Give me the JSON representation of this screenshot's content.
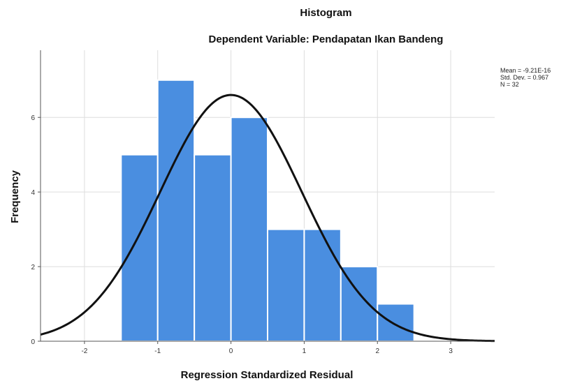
{
  "chart_data": {
    "type": "bar",
    "title": "Histogram",
    "subtitle": "Dependent Variable: Pendapatan Ikan Bandeng",
    "xlabel": "Regression Standardized Residual",
    "ylabel": "Frequency",
    "xlim": [
      -2.6,
      3.6
    ],
    "ylim": [
      0,
      7.8
    ],
    "x_ticks": [
      -2,
      -1,
      0,
      1,
      2,
      3
    ],
    "y_ticks": [
      0,
      2,
      4,
      6
    ],
    "bins": [
      {
        "from": -1.5,
        "to": -1.0,
        "value": 5
      },
      {
        "from": -1.0,
        "to": -0.5,
        "value": 7
      },
      {
        "from": -0.5,
        "to": 0.0,
        "value": 5
      },
      {
        "from": 0.0,
        "to": 0.5,
        "value": 6
      },
      {
        "from": 0.5,
        "to": 1.0,
        "value": 3
      },
      {
        "from": 1.0,
        "to": 1.5,
        "value": 3
      },
      {
        "from": 1.5,
        "to": 2.0,
        "value": 2
      },
      {
        "from": 2.0,
        "to": 2.5,
        "value": 1
      }
    ],
    "normal_curve": {
      "mean": 0,
      "std": 0.967,
      "n": 32,
      "bin_width": 0.5
    },
    "bar_color": "#4a8ee0",
    "bar_edge_color": "#ffffff",
    "curve_color": "#111111",
    "grid": true
  },
  "stats": {
    "mean": "Mean = -9.21E-16",
    "std": "Std. Dev. = 0.967",
    "n": "N = 32"
  }
}
